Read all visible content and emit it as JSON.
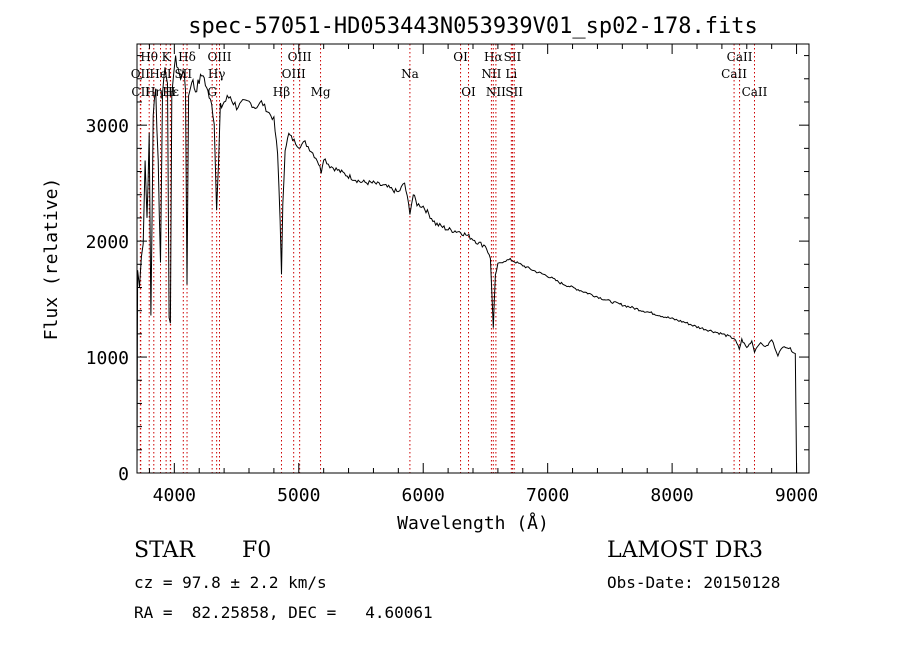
{
  "chart_data": {
    "type": "line",
    "title": "spec-57051-HD053443N053939V01_sp02-178.fits",
    "xlabel": "Wavelength (Å)",
    "ylabel": "Flux (relative)",
    "xlim": [
      3700,
      9100
    ],
    "ylim": [
      0,
      3700
    ],
    "x_ticks": [
      4000,
      5000,
      6000,
      7000,
      8000,
      9000
    ],
    "y_ticks": [
      0,
      1000,
      2000,
      3000
    ],
    "series": [
      {
        "name": "flux",
        "points": [
          [
            3700,
            0
          ],
          [
            3705,
            1750
          ],
          [
            3720,
            1600
          ],
          [
            3735,
            1900
          ],
          [
            3750,
            2000
          ],
          [
            3765,
            2700
          ],
          [
            3780,
            2200
          ],
          [
            3798,
            2900
          ],
          [
            3812,
            1350
          ],
          [
            3830,
            3100
          ],
          [
            3850,
            3300
          ],
          [
            3870,
            2700
          ],
          [
            3889,
            1800
          ],
          [
            3905,
            3300
          ],
          [
            3925,
            3500
          ],
          [
            3945,
            3400
          ],
          [
            3958,
            1300
          ],
          [
            3968,
            1250
          ],
          [
            3980,
            3300
          ],
          [
            3995,
            3450
          ],
          [
            4010,
            3560
          ],
          [
            4030,
            3500
          ],
          [
            4050,
            3380
          ],
          [
            4070,
            3500
          ],
          [
            4090,
            3300
          ],
          [
            4102,
            1650
          ],
          [
            4115,
            3250
          ],
          [
            4140,
            3400
          ],
          [
            4170,
            3300
          ],
          [
            4200,
            3380
          ],
          [
            4230,
            3450
          ],
          [
            4260,
            3300
          ],
          [
            4290,
            3250
          ],
          [
            4320,
            3050
          ],
          [
            4340,
            2250
          ],
          [
            4355,
            2650
          ],
          [
            4370,
            3150
          ],
          [
            4400,
            3200
          ],
          [
            4450,
            3250
          ],
          [
            4500,
            3150
          ],
          [
            4550,
            3200
          ],
          [
            4600,
            3200
          ],
          [
            4650,
            3150
          ],
          [
            4700,
            3200
          ],
          [
            4750,
            3120
          ],
          [
            4800,
            3050
          ],
          [
            4830,
            2750
          ],
          [
            4850,
            2200
          ],
          [
            4861,
            1700
          ],
          [
            4872,
            2300
          ],
          [
            4890,
            2800
          ],
          [
            4920,
            2920
          ],
          [
            4950,
            2880
          ],
          [
            5000,
            2820
          ],
          [
            5050,
            2850
          ],
          [
            5100,
            2780
          ],
          [
            5150,
            2700
          ],
          [
            5180,
            2600
          ],
          [
            5200,
            2720
          ],
          [
            5250,
            2650
          ],
          [
            5300,
            2620
          ],
          [
            5400,
            2560
          ],
          [
            5500,
            2510
          ],
          [
            5600,
            2500
          ],
          [
            5700,
            2470
          ],
          [
            5800,
            2420
          ],
          [
            5850,
            2500
          ],
          [
            5893,
            2250
          ],
          [
            5920,
            2400
          ],
          [
            5950,
            2320
          ],
          [
            6000,
            2300
          ],
          [
            6100,
            2150
          ],
          [
            6200,
            2100
          ],
          [
            6300,
            2080
          ],
          [
            6400,
            2020
          ],
          [
            6450,
            1980
          ],
          [
            6500,
            1960
          ],
          [
            6540,
            1850
          ],
          [
            6563,
            1250
          ],
          [
            6580,
            1700
          ],
          [
            6600,
            1800
          ],
          [
            6650,
            1830
          ],
          [
            6700,
            1840
          ],
          [
            6800,
            1790
          ],
          [
            6900,
            1740
          ],
          [
            7000,
            1700
          ],
          [
            7100,
            1640
          ],
          [
            7200,
            1600
          ],
          [
            7300,
            1560
          ],
          [
            7400,
            1520
          ],
          [
            7500,
            1480
          ],
          [
            7600,
            1450
          ],
          [
            7700,
            1420
          ],
          [
            7800,
            1390
          ],
          [
            7900,
            1360
          ],
          [
            8000,
            1330
          ],
          [
            8100,
            1300
          ],
          [
            8200,
            1260
          ],
          [
            8300,
            1230
          ],
          [
            8400,
            1200
          ],
          [
            8500,
            1160
          ],
          [
            8540,
            1070
          ],
          [
            8560,
            1150
          ],
          [
            8600,
            1080
          ],
          [
            8640,
            1140
          ],
          [
            8662,
            1050
          ],
          [
            8700,
            1120
          ],
          [
            8760,
            1090
          ],
          [
            8800,
            1150
          ],
          [
            8850,
            1020
          ],
          [
            8900,
            1100
          ],
          [
            8950,
            1070
          ],
          [
            8990,
            1030
          ],
          [
            9000,
            0
          ]
        ]
      }
    ],
    "line_markers": [
      {
        "label": "Hθ",
        "wavelength": 3798,
        "row": 1
      },
      {
        "label": "OII",
        "wavelength": 3727,
        "row": 2
      },
      {
        "label": "CII",
        "wavelength": 3730,
        "row": 3
      },
      {
        "label": "Hη",
        "wavelength": 3835,
        "row": 3
      },
      {
        "label": "K",
        "wavelength": 3934,
        "row": 1
      },
      {
        "label": "HeI",
        "wavelength": 3889,
        "row": 2
      },
      {
        "label": "H",
        "wavelength": 3968,
        "row": 3
      },
      {
        "label": "Hδ",
        "wavelength": 4102,
        "row": 1
      },
      {
        "label": "SII",
        "wavelength": 4072,
        "row": 2
      },
      {
        "label": "Hε",
        "wavelength": 3970,
        "row": 3
      },
      {
        "label": "OIII",
        "wavelength": 4363,
        "row": 1
      },
      {
        "label": "Hγ",
        "wavelength": 4340,
        "row": 2
      },
      {
        "label": "G",
        "wavelength": 4304,
        "row": 3
      },
      {
        "label": "OIII",
        "wavelength": 5007,
        "row": 1
      },
      {
        "label": "OIII",
        "wavelength": 4959,
        "row": 2
      },
      {
        "label": "Hβ",
        "wavelength": 4861,
        "row": 3
      },
      {
        "label": "Mg",
        "wavelength": 5175,
        "row": 3
      },
      {
        "label": "Na",
        "wavelength": 5893,
        "row": 2
      },
      {
        "label": "OI",
        "wavelength": 6300,
        "row": 1
      },
      {
        "label": "OI",
        "wavelength": 6364,
        "row": 3
      },
      {
        "label": "Hα",
        "wavelength": 6563,
        "row": 1
      },
      {
        "label": "NII",
        "wavelength": 6548,
        "row": 2
      },
      {
        "label": "NII",
        "wavelength": 6584,
        "row": 3
      },
      {
        "label": "SII",
        "wavelength": 6717,
        "row": 1
      },
      {
        "label": "Li",
        "wavelength": 6708,
        "row": 2
      },
      {
        "label": "SII",
        "wavelength": 6731,
        "row": 3
      },
      {
        "label": "CaII",
        "wavelength": 8542,
        "row": 1
      },
      {
        "label": "CaII",
        "wavelength": 8498,
        "row": 2
      },
      {
        "label": "CaII",
        "wavelength": 8662,
        "row": 3
      }
    ]
  },
  "info": {
    "object_class": "STAR",
    "subclass": "F0",
    "cz": "cz = 97.8 ± 2.2 km/s",
    "coords": "RA =  82.25858, DEC =   4.60061",
    "survey": "LAMOST DR3",
    "obs_date": "Obs-Date: 20150128"
  },
  "colors": {
    "line_marker": "#cc0000",
    "spectrum": "#000000"
  }
}
